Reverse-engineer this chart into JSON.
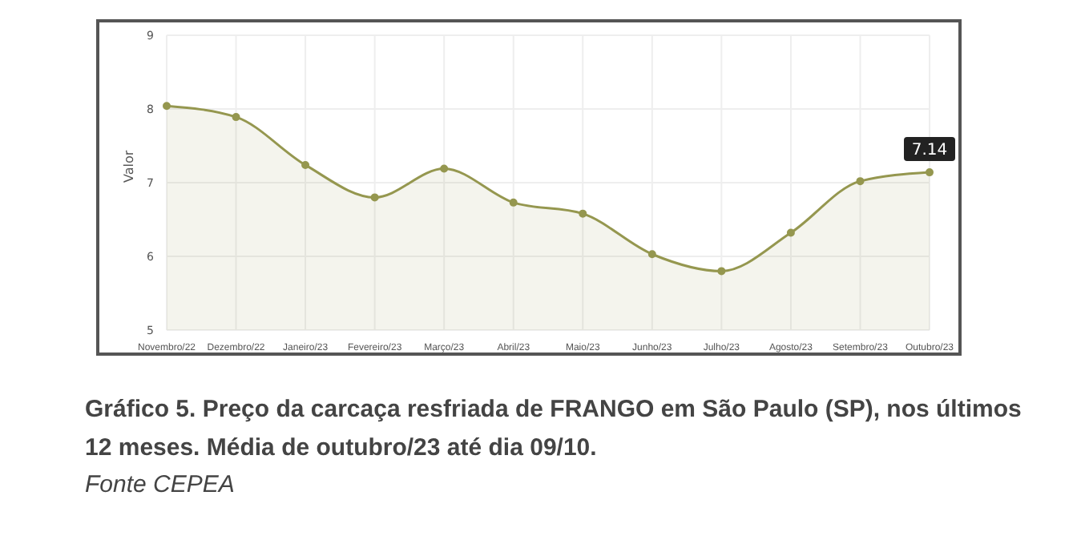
{
  "chart_data": {
    "type": "area",
    "title": "Gráfico 5. Preço da carcaça resfriada de FRANGO em São Paulo (SP), nos últimos 12 meses. Média de outubro/23 até dia 09/10.",
    "annotations": [
      "Fonte CEPEA"
    ],
    "ylabel": "Valor",
    "categories": [
      "Novembro/22",
      "Dezembro/22",
      "Janeiro/23",
      "Fevereiro/23",
      "Março/23",
      "Abril/23",
      "Maio/23",
      "Junho/23",
      "Julho/23",
      "Agosto/23",
      "Setembro/23",
      "Outubro/23"
    ],
    "series": [
      {
        "color": "#95974f",
        "values": [
          8.04,
          7.89,
          7.24,
          6.8,
          7.19,
          6.73,
          6.58,
          6.03,
          5.8,
          6.32,
          7.02,
          7.14
        ],
        "value_labels": [
          null,
          null,
          null,
          null,
          null,
          null,
          null,
          null,
          null,
          null,
          null,
          "7.14"
        ]
      }
    ],
    "ylim": [
      5,
      9
    ],
    "yticks": [
      5,
      6,
      7,
      8,
      9
    ],
    "grid": true,
    "marker": "circle",
    "legend": false
  }
}
